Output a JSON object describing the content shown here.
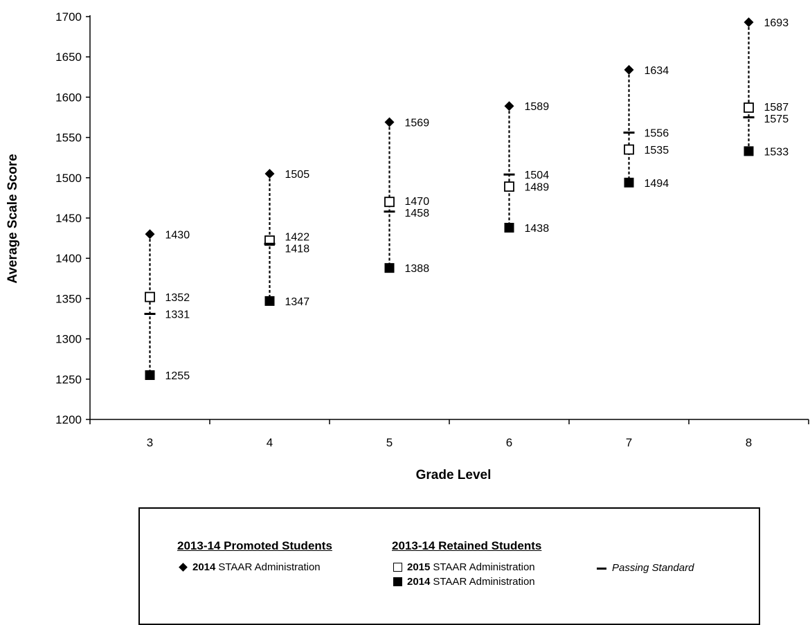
{
  "chart_data": {
    "type": "scatter",
    "xlabel": "Grade Level",
    "ylabel": "Average Scale Score",
    "ylim": [
      1200,
      1700
    ],
    "yticks": [
      "1200",
      "1250",
      "1300",
      "1350",
      "1400",
      "1450",
      "1500",
      "1550",
      "1600",
      "1650",
      "1700"
    ],
    "categories": [
      "3",
      "4",
      "5",
      "6",
      "7",
      "8"
    ],
    "grid": false,
    "series": [
      {
        "key": "promoted_2014",
        "name": "2014 STAAR Administration",
        "marker": "diamond",
        "values": [
          1430,
          1505,
          1569,
          1589,
          1634,
          1693
        ]
      },
      {
        "key": "retained_2015",
        "name": "2015 STAAR Administration",
        "marker": "open-square",
        "values": [
          1352,
          1422,
          1470,
          1489,
          1535,
          1587
        ]
      },
      {
        "key": "retained_2014",
        "name": "2014 STAAR Administration",
        "marker": "filled-square",
        "values": [
          1255,
          1347,
          1388,
          1438,
          1494,
          1533
        ]
      },
      {
        "key": "passing_standard",
        "name": "Passing Standard",
        "marker": "dash",
        "values": [
          1331,
          1418,
          1458,
          1504,
          1556,
          1575
        ]
      }
    ],
    "legend": {
      "position": "bottom",
      "promoted_heading": "2013-14 Promoted Students",
      "retained_heading": "2013-14 Retained Students",
      "promoted_2014": {
        "year": "2014",
        "text": "STAAR Administration"
      },
      "retained_2015": {
        "year": "2015",
        "text": "STAAR Administration"
      },
      "retained_2014": {
        "year": "2014",
        "text": "STAAR Administration"
      },
      "passing": "Passing Standard"
    }
  }
}
